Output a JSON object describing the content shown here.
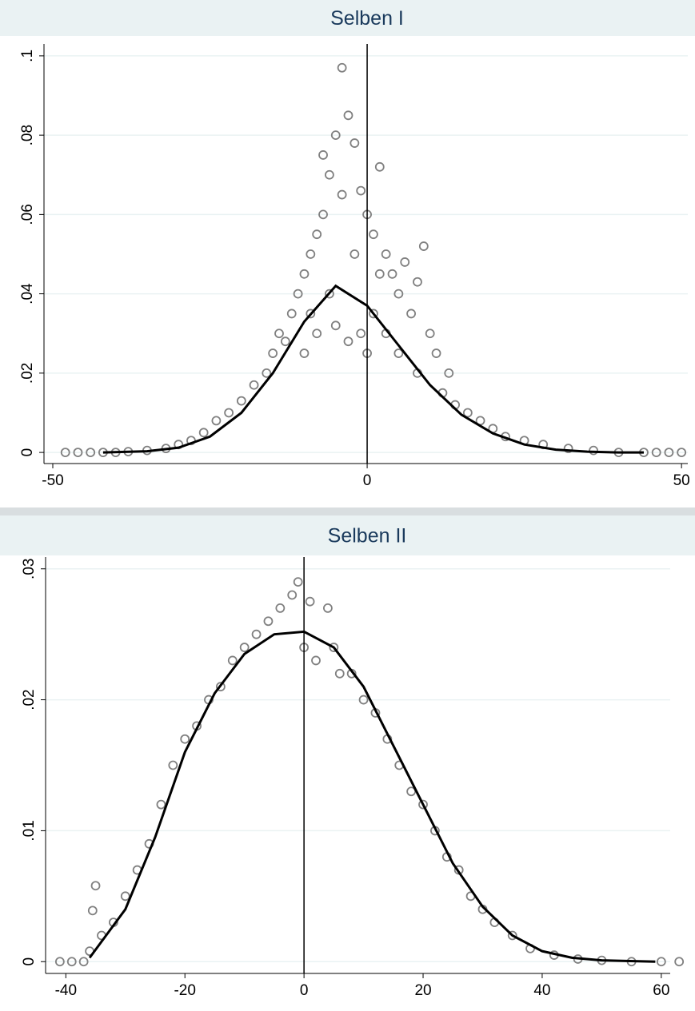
{
  "chart_data": [
    {
      "type": "scatter",
      "title": "Selben I",
      "xlim": [
        -51.4,
        51
      ],
      "ylim": [
        -0.0028,
        0.103
      ],
      "xticks": [
        -50,
        0,
        50
      ],
      "yticks": [
        0,
        {
          "value": 0.02,
          "label": ".02"
        },
        {
          "value": 0.04,
          "label": ".04"
        },
        {
          "value": 0.06,
          "label": ".06"
        },
        {
          "value": 0.08,
          "label": ".08"
        },
        {
          "value": 0.1,
          "label": ".1"
        }
      ],
      "grid": true,
      "xline": 0,
      "series": [
        {
          "color": "#808080",
          "marker": "circle-open",
          "x": [
            -48,
            -46,
            -44,
            -42,
            -40,
            -38,
            -35,
            -32,
            -30,
            -28,
            -26,
            -24,
            -22,
            -20,
            -18,
            -16,
            -15,
            -14,
            -13,
            -12,
            -11,
            -10,
            -10,
            -9,
            -9,
            -8,
            -8,
            -7,
            -7,
            -6,
            -6,
            -5,
            -5,
            -4,
            -4,
            -3,
            -3,
            -2,
            -2,
            -1,
            -1,
            0,
            0,
            1,
            1,
            2,
            2,
            3,
            3,
            4,
            5,
            5,
            6,
            7,
            8,
            8,
            9,
            10,
            11,
            12,
            13,
            14,
            16,
            18,
            20,
            22,
            25,
            28,
            32,
            36,
            40,
            44,
            46,
            48,
            50
          ],
          "values": [
            0,
            0,
            0,
            0,
            0,
            0.0002,
            0.0005,
            0.001,
            0.002,
            0.003,
            0.005,
            0.008,
            0.01,
            0.013,
            0.017,
            0.02,
            0.025,
            0.03,
            0.028,
            0.035,
            0.04,
            0.045,
            0.025,
            0.05,
            0.035,
            0.055,
            0.03,
            0.06,
            0.075,
            0.07,
            0.04,
            0.08,
            0.032,
            0.097,
            0.065,
            0.085,
            0.028,
            0.078,
            0.05,
            0.066,
            0.03,
            0.06,
            0.025,
            0.055,
            0.035,
            0.072,
            0.045,
            0.05,
            0.03,
            0.045,
            0.04,
            0.025,
            0.048,
            0.035,
            0.043,
            0.02,
            0.052,
            0.03,
            0.025,
            0.015,
            0.02,
            0.012,
            0.01,
            0.008,
            0.006,
            0.004,
            0.003,
            0.002,
            0.001,
            0.0005,
            0,
            0,
            0,
            0,
            0
          ]
        },
        {
          "color": "#000000",
          "line": true,
          "x": [
            -42,
            -35,
            -30,
            -25,
            -20,
            -15,
            -10,
            -5,
            0,
            5,
            10,
            15,
            20,
            25,
            30,
            35,
            40,
            44
          ],
          "values": [
            0,
            0.0003,
            0.0012,
            0.004,
            0.01,
            0.02,
            0.033,
            0.042,
            0.037,
            0.027,
            0.017,
            0.0095,
            0.0048,
            0.002,
            0.0007,
            0.0002,
            0,
            0
          ]
        }
      ]
    },
    {
      "type": "scatter",
      "title": "Selben II",
      "xlim": [
        -43.4,
        61.5
      ],
      "ylim": [
        -0.0009,
        0.0309
      ],
      "xticks": [
        -40,
        -20,
        0,
        20,
        40,
        60
      ],
      "yticks": [
        0,
        {
          "value": 0.01,
          "label": ".01"
        },
        {
          "value": 0.02,
          "label": ".02"
        },
        {
          "value": 0.03,
          "label": ".03"
        }
      ],
      "grid": true,
      "xline": 0,
      "series": [
        {
          "color": "#808080",
          "marker": "circle-open",
          "x": [
            -41,
            -39,
            -37,
            -36,
            -35,
            -35.5,
            -34,
            -32,
            -30,
            -28,
            -26,
            -24,
            -22,
            -20,
            -18,
            -16,
            -14,
            -12,
            -10,
            -8,
            -6,
            -4,
            -2,
            -1,
            0,
            1,
            2,
            4,
            5,
            6,
            8,
            10,
            12,
            14,
            16,
            18,
            20,
            22,
            24,
            26,
            28,
            30,
            32,
            35,
            38,
            42,
            46,
            50,
            55,
            60,
            63
          ],
          "values": [
            0,
            0,
            0,
            0.0008,
            0.0058,
            0.0039,
            0.002,
            0.003,
            0.005,
            0.007,
            0.009,
            0.012,
            0.015,
            0.017,
            0.018,
            0.02,
            0.021,
            0.023,
            0.024,
            0.025,
            0.026,
            0.027,
            0.028,
            0.029,
            0.024,
            0.0275,
            0.023,
            0.027,
            0.024,
            0.022,
            0.022,
            0.02,
            0.019,
            0.017,
            0.015,
            0.013,
            0.012,
            0.01,
            0.008,
            0.007,
            0.005,
            0.004,
            0.003,
            0.002,
            0.001,
            0.0005,
            0.0002,
            0.0001,
            0,
            0,
            0
          ]
        },
        {
          "color": "#000000",
          "line": true,
          "x": [
            -36,
            -30,
            -25,
            -20,
            -15,
            -10,
            -5,
            0,
            5,
            10,
            15,
            20,
            25,
            30,
            35,
            40,
            45,
            50,
            59
          ],
          "values": [
            0.0003,
            0.004,
            0.0095,
            0.016,
            0.0205,
            0.0235,
            0.025,
            0.0252,
            0.024,
            0.021,
            0.0165,
            0.012,
            0.0075,
            0.0042,
            0.002,
            0.0008,
            0.0003,
            0.0001,
            0
          ]
        }
      ]
    }
  ]
}
